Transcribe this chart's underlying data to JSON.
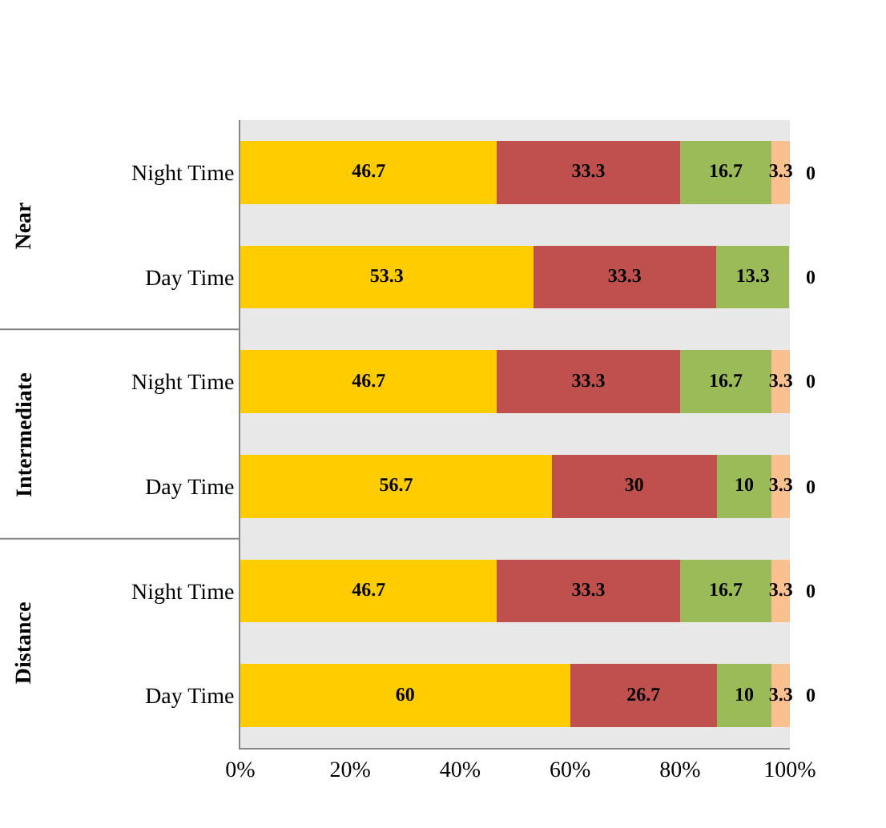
{
  "chart_data": {
    "type": "bar",
    "orientation": "horizontal",
    "stacked": true,
    "categories": [
      "Night Time",
      "Day Time",
      "Night Time",
      "Day Time",
      "Night Time",
      "Day Time"
    ],
    "annotations": [
      "Near",
      "Intermediate",
      "Distance"
    ],
    "series": [
      {
        "color": "#ffcc00",
        "values": [
          46.7,
          53.3,
          46.7,
          56.7,
          46.7,
          60
        ]
      },
      {
        "color": "#c0504d",
        "values": [
          33.3,
          33.3,
          33.3,
          30,
          33.3,
          26.7
        ]
      },
      {
        "color": "#9bbb59",
        "values": [
          16.7,
          13.3,
          16.7,
          10,
          16.7,
          10
        ]
      },
      {
        "color": "#fac090",
        "values": [
          3.3,
          0,
          3.3,
          3.3,
          3.3,
          3.3
        ],
        "value_labels": [
          "3.3",
          null,
          "3.3",
          "3.3",
          "3.3",
          "3.3"
        ]
      },
      {
        "color": "#31859c",
        "values": [
          0,
          0,
          0,
          0,
          0,
          0
        ]
      }
    ],
    "data_labels": true,
    "xlim": [
      0,
      100
    ],
    "xticks": [
      {
        "value": 0,
        "label": "0%"
      },
      {
        "value": 20,
        "label": "20%"
      },
      {
        "value": 40,
        "label": "40%"
      },
      {
        "value": 60,
        "label": "60%"
      },
      {
        "value": 80,
        "label": "80%"
      },
      {
        "value": 100,
        "label": "100%"
      }
    ],
    "grid": false
  }
}
